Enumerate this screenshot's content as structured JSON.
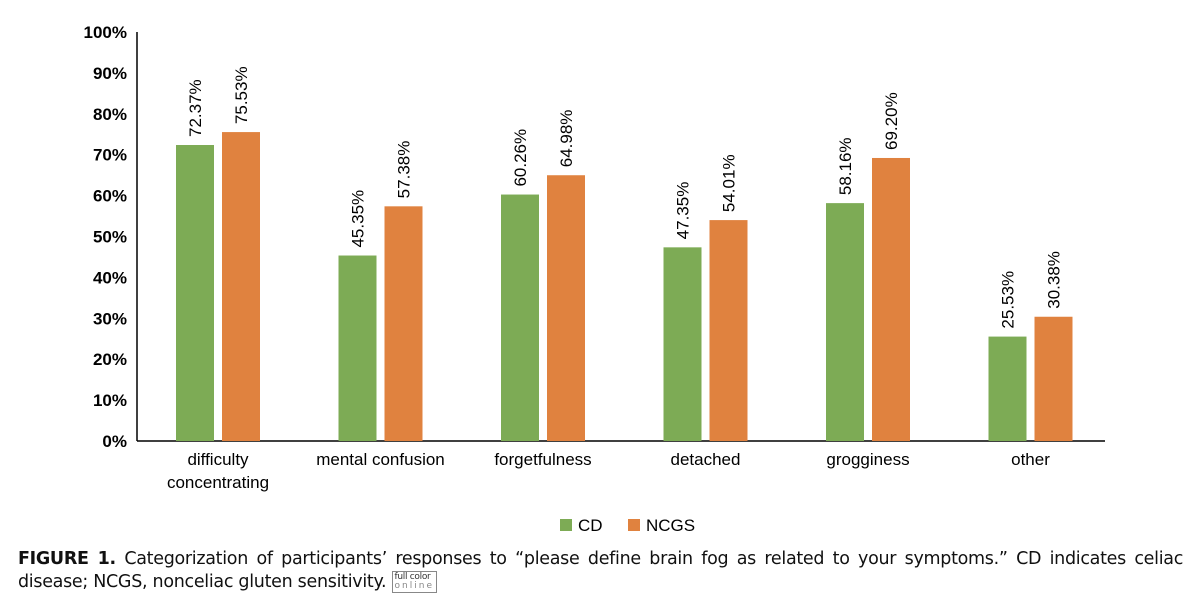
{
  "chart_data": {
    "type": "bar",
    "categories": [
      "difficulty concentrating",
      "mental confusion",
      "forgetfulness",
      "detached",
      "grogginess",
      "other"
    ],
    "category_lines": [
      [
        "difficulty",
        "concentrating"
      ],
      [
        "mental confusion"
      ],
      [
        "forgetfulness"
      ],
      [
        "detached"
      ],
      [
        "grogginess"
      ],
      [
        "other"
      ]
    ],
    "series": [
      {
        "name": "CD",
        "color": "#7dab55",
        "values": [
          72.37,
          45.35,
          60.26,
          47.35,
          58.16,
          25.53
        ],
        "labels": [
          "72.37%",
          "45.35%",
          "60.26%",
          "47.35%",
          "58.16%",
          "25.53%"
        ]
      },
      {
        "name": "NCGS",
        "color": "#e0823f",
        "values": [
          75.53,
          57.38,
          64.98,
          54.01,
          69.2,
          30.38
        ],
        "labels": [
          "75.53%",
          "57.38%",
          "64.98%",
          "54.01%",
          "69.20%",
          "30.38%"
        ]
      }
    ],
    "ylim": [
      0,
      100
    ],
    "yticks": [
      "0%",
      "10%",
      "20%",
      "30%",
      "40%",
      "50%",
      "60%",
      "70%",
      "80%",
      "90%",
      "100%"
    ],
    "grid": false,
    "legend": "bottom-center",
    "xlabel": "",
    "ylabel": "",
    "title": ""
  },
  "caption": {
    "label": "FIGURE 1.",
    "text": "Categorization of participants’ responses to “please define brain fog as related to your symptoms.” CD indicates celiac disease; NCGS, nonceliac gluten sensitivity.",
    "badge_line1": "full color",
    "badge_line2": "online"
  }
}
